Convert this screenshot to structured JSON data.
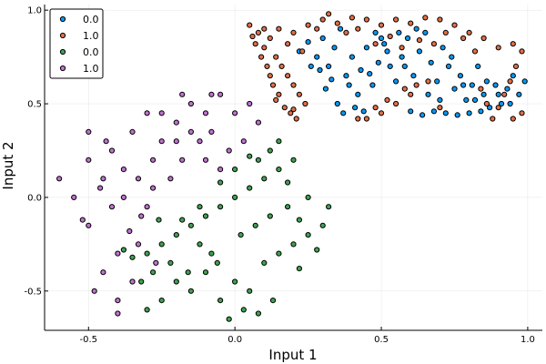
{
  "chart_data": {
    "type": "scatter",
    "xlabel": "Input 1",
    "ylabel": "Input 2",
    "xlim": [
      -0.65,
      1.05
    ],
    "ylim": [
      -0.71,
      1.03
    ],
    "xticks": [
      -0.5,
      0.0,
      0.5,
      1.0
    ],
    "xtick_labels": [
      "-0.5",
      "0.0",
      "0.5",
      "1.0"
    ],
    "yticks": [
      -0.5,
      0.0,
      0.5,
      1.0
    ],
    "ytick_labels": [
      "-0.5",
      "0.0",
      "0.5",
      "1.0"
    ],
    "grid": true,
    "legend_position": "top-left",
    "series": [
      {
        "name": "0.0",
        "color": "#009AFA",
        "points": [
          [
            0.22,
            0.78
          ],
          [
            0.25,
            0.83
          ],
          [
            0.28,
            0.75
          ],
          [
            0.3,
            0.85
          ],
          [
            0.32,
            0.7
          ],
          [
            0.34,
            0.8
          ],
          [
            0.36,
            0.9
          ],
          [
            0.38,
            0.65
          ],
          [
            0.4,
            0.75
          ],
          [
            0.42,
            0.55
          ],
          [
            0.35,
            0.5
          ],
          [
            0.37,
            0.45
          ],
          [
            0.39,
            0.6
          ],
          [
            0.41,
            0.48
          ],
          [
            0.43,
            0.68
          ],
          [
            0.45,
            0.8
          ],
          [
            0.47,
            0.6
          ],
          [
            0.49,
            0.72
          ],
          [
            0.51,
            0.82
          ],
          [
            0.53,
            0.7
          ],
          [
            0.55,
            0.62
          ],
          [
            0.57,
            0.75
          ],
          [
            0.59,
            0.85
          ],
          [
            0.61,
            0.65
          ],
          [
            0.63,
            0.78
          ],
          [
            0.65,
            0.88
          ],
          [
            0.67,
            0.72
          ],
          [
            0.69,
            0.62
          ],
          [
            0.71,
            0.8
          ],
          [
            0.73,
            0.7
          ],
          [
            0.75,
            0.58
          ],
          [
            0.77,
            0.65
          ],
          [
            0.79,
            0.52
          ],
          [
            0.81,
            0.6
          ],
          [
            0.83,
            0.7
          ],
          [
            0.85,
            0.55
          ],
          [
            0.87,
            0.48
          ],
          [
            0.89,
            0.6
          ],
          [
            0.91,
            0.5
          ],
          [
            0.93,
            0.58
          ],
          [
            0.95,
            0.65
          ],
          [
            0.97,
            0.55
          ],
          [
            0.99,
            0.62
          ],
          [
            0.6,
            0.46
          ],
          [
            0.64,
            0.44
          ],
          [
            0.68,
            0.46
          ],
          [
            0.72,
            0.45
          ],
          [
            0.76,
            0.44
          ],
          [
            0.8,
            0.45
          ],
          [
            0.84,
            0.46
          ],
          [
            0.33,
            0.63
          ],
          [
            0.29,
            0.68
          ],
          [
            0.44,
            0.46
          ],
          [
            0.46,
            0.66
          ],
          [
            0.5,
            0.85
          ],
          [
            0.56,
            0.88
          ],
          [
            0.58,
            0.7
          ],
          [
            0.62,
            0.9
          ],
          [
            0.66,
            0.55
          ],
          [
            0.7,
            0.52
          ],
          [
            0.74,
            0.75
          ],
          [
            0.78,
            0.6
          ],
          [
            0.82,
            0.52
          ],
          [
            0.86,
            0.62
          ],
          [
            0.9,
            0.55
          ],
          [
            0.94,
            0.5
          ],
          [
            0.52,
            0.78
          ],
          [
            0.48,
            0.88
          ],
          [
            0.26,
            0.7
          ],
          [
            0.31,
            0.58
          ]
        ]
      },
      {
        "name": "1.0",
        "color": "#E26F46",
        "points": [
          [
            0.05,
            0.92
          ],
          [
            0.08,
            0.88
          ],
          [
            0.1,
            0.8
          ],
          [
            0.12,
            0.85
          ],
          [
            0.14,
            0.75
          ],
          [
            0.16,
            0.7
          ],
          [
            0.18,
            0.65
          ],
          [
            0.2,
            0.6
          ],
          [
            0.22,
            0.55
          ],
          [
            0.24,
            0.5
          ],
          [
            0.13,
            0.6
          ],
          [
            0.15,
            0.55
          ],
          [
            0.17,
            0.48
          ],
          [
            0.19,
            0.45
          ],
          [
            0.21,
            0.42
          ],
          [
            0.11,
            0.7
          ],
          [
            0.09,
            0.75
          ],
          [
            0.07,
            0.82
          ],
          [
            0.06,
            0.86
          ],
          [
            0.15,
            0.9
          ],
          [
            0.2,
            0.88
          ],
          [
            0.25,
            0.92
          ],
          [
            0.3,
            0.95
          ],
          [
            0.35,
            0.93
          ],
          [
            0.4,
            0.96
          ],
          [
            0.45,
            0.95
          ],
          [
            0.5,
            0.92
          ],
          [
            0.55,
            0.95
          ],
          [
            0.6,
            0.93
          ],
          [
            0.65,
            0.96
          ],
          [
            0.7,
            0.95
          ],
          [
            0.75,
            0.92
          ],
          [
            0.8,
            0.88
          ],
          [
            0.85,
            0.85
          ],
          [
            0.9,
            0.8
          ],
          [
            0.95,
            0.82
          ],
          [
            0.98,
            0.78
          ],
          [
            0.96,
            0.7
          ],
          [
            0.94,
            0.62
          ],
          [
            0.92,
            0.55
          ],
          [
            0.9,
            0.48
          ],
          [
            0.95,
            0.42
          ],
          [
            0.98,
            0.45
          ],
          [
            0.88,
            0.42
          ],
          [
            0.86,
            0.5
          ],
          [
            0.84,
            0.58
          ],
          [
            0.45,
            0.42
          ],
          [
            0.5,
            0.45
          ],
          [
            0.55,
            0.5
          ],
          [
            0.6,
            0.55
          ],
          [
            0.62,
            0.6
          ],
          [
            0.58,
            0.58
          ],
          [
            0.52,
            0.52
          ],
          [
            0.48,
            0.48
          ],
          [
            0.42,
            0.42
          ],
          [
            0.38,
            0.88
          ],
          [
            0.42,
            0.9
          ],
          [
            0.48,
            0.82
          ],
          [
            0.53,
            0.86
          ],
          [
            0.57,
            0.8
          ],
          [
            0.63,
            0.84
          ],
          [
            0.68,
            0.82
          ],
          [
            0.72,
            0.88
          ],
          [
            0.78,
            0.85
          ],
          [
            0.82,
            0.78
          ],
          [
            0.1,
            0.9
          ],
          [
            0.18,
            0.82
          ],
          [
            0.23,
            0.78
          ],
          [
            0.14,
            0.52
          ],
          [
            0.12,
            0.65
          ],
          [
            0.2,
            0.47
          ],
          [
            0.66,
            0.62
          ],
          [
            0.7,
            0.48
          ],
          [
            0.32,
            0.98
          ],
          [
            0.28,
            0.9
          ]
        ]
      },
      {
        "name": "0.0",
        "color": "#3EA44E",
        "points": [
          [
            -0.3,
            -0.6
          ],
          [
            -0.25,
            -0.55
          ],
          [
            -0.2,
            -0.45
          ],
          [
            -0.15,
            -0.5
          ],
          [
            -0.1,
            -0.4
          ],
          [
            -0.05,
            -0.55
          ],
          [
            0.0,
            -0.45
          ],
          [
            0.05,
            -0.5
          ],
          [
            0.1,
            -0.35
          ],
          [
            0.15,
            -0.3
          ],
          [
            0.2,
            -0.25
          ],
          [
            0.25,
            -0.2
          ],
          [
            0.3,
            -0.15
          ],
          [
            -0.3,
            -0.3
          ],
          [
            -0.25,
            -0.25
          ],
          [
            -0.2,
            -0.2
          ],
          [
            -0.15,
            -0.15
          ],
          [
            -0.1,
            -0.1
          ],
          [
            -0.05,
            -0.05
          ],
          [
            0.0,
            0.0
          ],
          [
            0.05,
            0.05
          ],
          [
            0.1,
            0.1
          ],
          [
            0.15,
            0.15
          ],
          [
            0.2,
            0.2
          ],
          [
            0.12,
            0.25
          ],
          [
            0.08,
            0.2
          ],
          [
            0.0,
            0.15
          ],
          [
            -0.05,
            0.08
          ],
          [
            -0.12,
            -0.05
          ],
          [
            -0.18,
            -0.12
          ],
          [
            -0.22,
            -0.35
          ],
          [
            -0.28,
            -0.4
          ],
          [
            -0.35,
            -0.32
          ],
          [
            -0.32,
            -0.45
          ],
          [
            -0.12,
            -0.25
          ],
          [
            -0.08,
            -0.3
          ],
          [
            0.02,
            -0.2
          ],
          [
            0.07,
            -0.15
          ],
          [
            0.12,
            -0.1
          ],
          [
            0.18,
            -0.05
          ],
          [
            0.22,
            -0.12
          ],
          [
            0.28,
            -0.28
          ],
          [
            0.32,
            -0.05
          ],
          [
            0.25,
            0.0
          ],
          [
            0.18,
            0.08
          ],
          [
            0.03,
            -0.6
          ],
          [
            -0.02,
            -0.65
          ],
          [
            0.08,
            -0.62
          ],
          [
            0.13,
            -0.55
          ],
          [
            -0.06,
            -0.35
          ],
          [
            -0.16,
            -0.4
          ],
          [
            0.05,
            0.22
          ],
          [
            0.15,
            0.3
          ],
          [
            0.22,
            -0.38
          ],
          [
            -0.38,
            -0.28
          ],
          [
            -0.26,
            -0.12
          ]
        ]
      },
      {
        "name": "1.0",
        "color": "#C271D2",
        "points": [
          [
            -0.6,
            0.1
          ],
          [
            -0.55,
            0.0
          ],
          [
            -0.5,
            -0.15
          ],
          [
            -0.5,
            0.2
          ],
          [
            -0.5,
            0.35
          ],
          [
            -0.45,
            0.1
          ],
          [
            -0.42,
            0.25
          ],
          [
            -0.38,
            0.15
          ],
          [
            -0.35,
            0.35
          ],
          [
            -0.3,
            0.45
          ],
          [
            -0.28,
            0.2
          ],
          [
            -0.25,
            0.3
          ],
          [
            -0.2,
            0.4
          ],
          [
            -0.15,
            0.5
          ],
          [
            -0.1,
            0.45
          ],
          [
            -0.05,
            0.55
          ],
          [
            0.0,
            0.45
          ],
          [
            0.05,
            0.5
          ],
          [
            -0.4,
            -0.3
          ],
          [
            -0.45,
            -0.4
          ],
          [
            -0.4,
            -0.55
          ],
          [
            -0.35,
            -0.45
          ],
          [
            -0.48,
            -0.5
          ],
          [
            -0.38,
            0.0
          ],
          [
            -0.32,
            -0.1
          ],
          [
            -0.28,
            0.05
          ],
          [
            -0.22,
            0.1
          ],
          [
            -0.18,
            0.2
          ],
          [
            -0.12,
            0.3
          ],
          [
            -0.08,
            0.35
          ],
          [
            -0.02,
            0.25
          ],
          [
            0.03,
            0.3
          ],
          [
            -0.42,
            -0.05
          ],
          [
            -0.36,
            -0.18
          ],
          [
            -0.3,
            -0.05
          ],
          [
            -0.46,
            0.05
          ],
          [
            -0.52,
            -0.12
          ],
          [
            -0.25,
            0.45
          ],
          [
            -0.2,
            0.3
          ],
          [
            -0.15,
            0.35
          ],
          [
            -0.1,
            0.2
          ],
          [
            -0.05,
            0.15
          ],
          [
            -0.4,
            -0.62
          ],
          [
            -0.33,
            -0.25
          ],
          [
            -0.27,
            -0.35
          ],
          [
            -0.33,
            0.1
          ],
          [
            -0.08,
            0.55
          ],
          [
            0.08,
            0.4
          ],
          [
            -0.18,
            0.55
          ],
          [
            -0.44,
            0.3
          ]
        ]
      }
    ]
  }
}
